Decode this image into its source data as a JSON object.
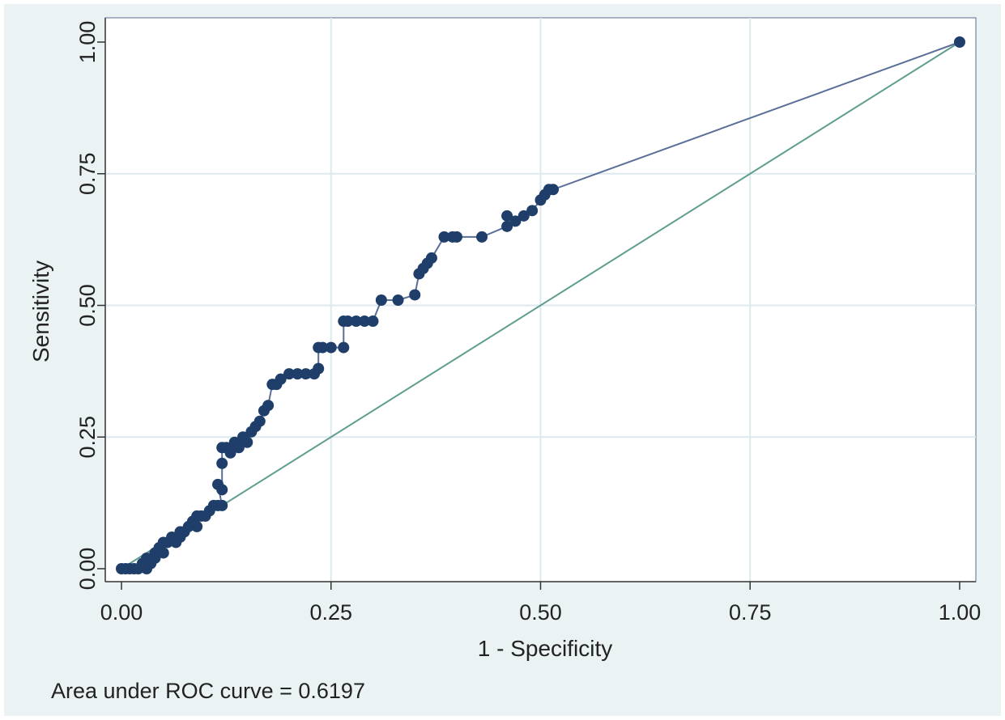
{
  "chart_data": {
    "type": "line",
    "xlabel": "1 - Specificity",
    "ylabel": "Sensitivity",
    "xlim": [
      0,
      1
    ],
    "ylim": [
      0,
      1
    ],
    "xticks": [
      "0.00",
      "0.25",
      "0.50",
      "0.75",
      "1.00"
    ],
    "yticks": [
      "0.00",
      "0.25",
      "0.50",
      "0.75",
      "1.00"
    ],
    "grid": true,
    "series": [
      {
        "kind": "roc-curve",
        "color": "#1f3e6a",
        "line_color": "#5a6f98",
        "markers": true,
        "x": [
          0.0,
          0.005,
          0.01,
          0.015,
          0.02,
          0.025,
          0.03,
          0.03,
          0.035,
          0.04,
          0.04,
          0.045,
          0.05,
          0.05,
          0.055,
          0.06,
          0.065,
          0.07,
          0.07,
          0.075,
          0.08,
          0.085,
          0.09,
          0.09,
          0.095,
          0.1,
          0.105,
          0.11,
          0.115,
          0.12,
          0.115,
          0.12,
          0.12,
          0.12,
          0.125,
          0.13,
          0.135,
          0.14,
          0.145,
          0.15,
          0.155,
          0.16,
          0.165,
          0.17,
          0.175,
          0.18,
          0.185,
          0.19,
          0.2,
          0.21,
          0.22,
          0.23,
          0.235,
          0.235,
          0.24,
          0.25,
          0.265,
          0.265,
          0.27,
          0.28,
          0.29,
          0.3,
          0.31,
          0.33,
          0.35,
          0.355,
          0.36,
          0.365,
          0.37,
          0.385,
          0.395,
          0.4,
          0.43,
          0.46,
          0.46,
          0.47,
          0.48,
          0.49,
          0.5,
          0.505,
          0.51,
          0.515,
          1.0
        ],
        "y": [
          0.0,
          0.0,
          0.0,
          0.0,
          0.0,
          0.01,
          0.0,
          0.02,
          0.01,
          0.02,
          0.03,
          0.04,
          0.03,
          0.05,
          0.05,
          0.06,
          0.05,
          0.06,
          0.07,
          0.07,
          0.08,
          0.09,
          0.08,
          0.1,
          0.1,
          0.1,
          0.11,
          0.12,
          0.12,
          0.12,
          0.16,
          0.15,
          0.2,
          0.23,
          0.23,
          0.22,
          0.24,
          0.23,
          0.25,
          0.24,
          0.26,
          0.27,
          0.28,
          0.3,
          0.31,
          0.35,
          0.35,
          0.36,
          0.37,
          0.37,
          0.37,
          0.37,
          0.38,
          0.42,
          0.42,
          0.42,
          0.42,
          0.47,
          0.47,
          0.47,
          0.47,
          0.47,
          0.51,
          0.51,
          0.52,
          0.56,
          0.57,
          0.58,
          0.59,
          0.63,
          0.63,
          0.63,
          0.63,
          0.65,
          0.67,
          0.66,
          0.67,
          0.68,
          0.7,
          0.71,
          0.72,
          0.72,
          1.0
        ]
      },
      {
        "kind": "reference-line",
        "color": "#5f9e8f",
        "x": [
          0,
          1
        ],
        "y": [
          0,
          1
        ]
      }
    ],
    "annotation": "Area under ROC curve = 0.6197"
  },
  "colors": {
    "figure_bg": "#eaf2f3",
    "plot_bg": "#ffffff",
    "grid": "#dde9ee"
  }
}
